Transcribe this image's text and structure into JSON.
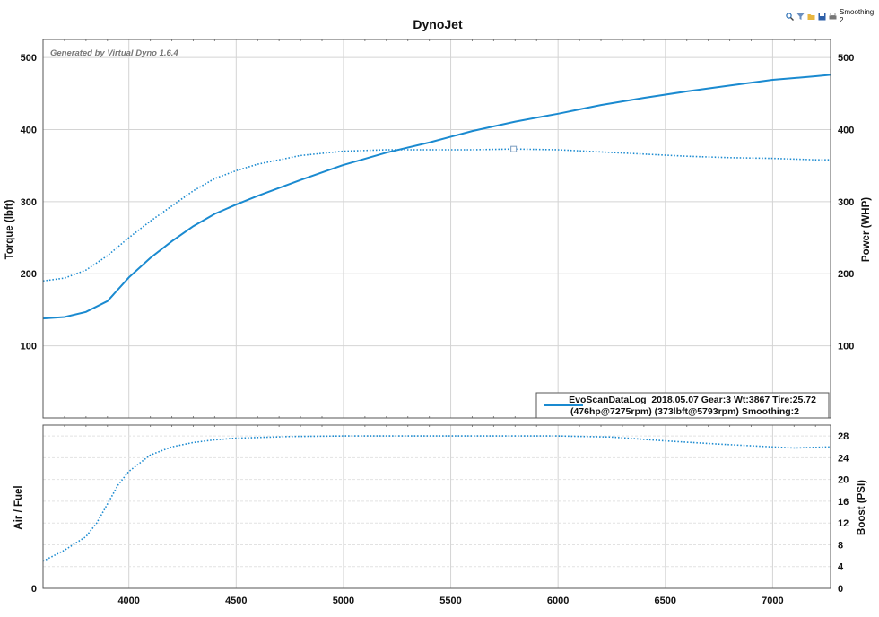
{
  "toolbar": {
    "smoothing_label": "Smoothing 2",
    "icons": [
      "zoom-icon",
      "filter-icon",
      "folder-icon",
      "save-icon",
      "print-icon"
    ]
  },
  "colors": {
    "series": "#1a8ad0",
    "grid": "#d4d4d4",
    "frame": "#555555"
  },
  "chart_data": [
    {
      "type": "line",
      "title": "DynoJet",
      "watermark": "Generated by Virtual Dyno 1.6.4",
      "xlabel": "",
      "ylabel": "Torque (lbft)",
      "y2label": "Power (WHP)",
      "xlim": [
        3600,
        7270
      ],
      "ylim": [
        0,
        525
      ],
      "y2lim": [
        0,
        525
      ],
      "xticks": [
        4000,
        4500,
        5000,
        5500,
        6000,
        6500,
        7000
      ],
      "yticks": [
        100,
        200,
        300,
        400,
        500
      ],
      "y2ticks": [
        100,
        200,
        300,
        400,
        500
      ],
      "grid": true,
      "legend_position": "bottom-right",
      "legend": {
        "line1": "EvoScanDataLog_2018.05.07 Gear:3 Wt:3867 Tire:25.72",
        "line2": "(476hp@7275rpm) (373lbft@5793rpm) Smoothing:2"
      },
      "series": [
        {
          "style": "solid",
          "x": [
            3600,
            3700,
            3800,
            3900,
            4000,
            4100,
            4200,
            4300,
            4400,
            4500,
            4600,
            4800,
            5000,
            5200,
            5400,
            5600,
            5800,
            6000,
            6200,
            6400,
            6600,
            6800,
            7000,
            7200,
            7270
          ],
          "values": [
            138,
            140,
            147,
            162,
            195,
            222,
            245,
            266,
            283,
            296,
            308,
            330,
            351,
            368,
            382,
            398,
            411,
            422,
            434,
            444,
            453,
            461,
            469,
            474,
            476
          ]
        },
        {
          "style": "dotted",
          "x": [
            3600,
            3700,
            3800,
            3900,
            4000,
            4100,
            4200,
            4300,
            4400,
            4500,
            4600,
            4800,
            5000,
            5200,
            5400,
            5600,
            5793,
            6000,
            6200,
            6400,
            6600,
            6800,
            7000,
            7200,
            7270
          ],
          "values": [
            190,
            194,
            205,
            225,
            250,
            273,
            294,
            315,
            332,
            343,
            352,
            364,
            370,
            372,
            372,
            372,
            373,
            372,
            369,
            366,
            363,
            361,
            360,
            358,
            358
          ]
        }
      ]
    },
    {
      "type": "line",
      "xlabel": "",
      "ylabel": "Air / Fuel",
      "y2label": "Boost (PSI)",
      "xlim": [
        3600,
        7270
      ],
      "ylim": [
        0,
        30
      ],
      "xticks": [
        4000,
        4500,
        5000,
        5500,
        6000,
        6500,
        7000
      ],
      "xtick_labels": [
        "4000",
        "4500",
        "5000",
        "5500",
        "6000",
        "6500",
        "7000"
      ],
      "yticks": [
        0
      ],
      "y2ticks": [
        0,
        4,
        8,
        12,
        16,
        20,
        24,
        28
      ],
      "grid": true,
      "series": [
        {
          "style": "dotted",
          "x": [
            3600,
            3700,
            3800,
            3850,
            3900,
            3950,
            4000,
            4050,
            4100,
            4200,
            4300,
            4400,
            4500,
            4750,
            5000,
            5500,
            6000,
            6250,
            6500,
            6750,
            7000,
            7100,
            7270
          ],
          "values": [
            5.0,
            7.0,
            9.5,
            12.0,
            15.5,
            19.0,
            21.5,
            23.0,
            24.5,
            26.0,
            26.8,
            27.3,
            27.6,
            27.9,
            28.0,
            28.0,
            28.0,
            27.8,
            27.1,
            26.5,
            26.0,
            25.8,
            26.0
          ]
        }
      ]
    }
  ]
}
